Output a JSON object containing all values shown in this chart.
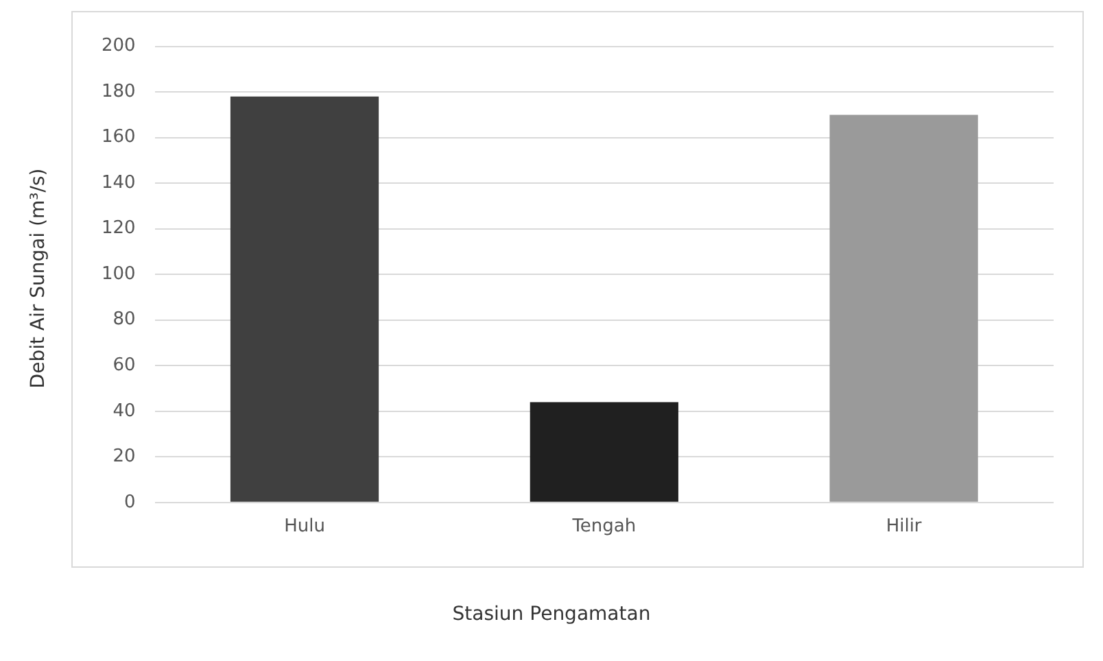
{
  "chart_data": {
    "type": "bar",
    "xlabel": "Stasiun Pengamatan",
    "ylabel": "Debit Air Sungai (m³/s)",
    "categories": [
      "Hulu",
      "Tengah",
      "Hilir"
    ],
    "values": [
      178,
      44,
      170
    ],
    "colors": [
      "#404040",
      "#202020",
      "#9a9a9a"
    ],
    "ylim": [
      0,
      200
    ],
    "yticks": [
      0,
      20,
      40,
      60,
      80,
      100,
      120,
      140,
      160,
      180,
      200
    ],
    "grid": "y",
    "legend": false
  }
}
